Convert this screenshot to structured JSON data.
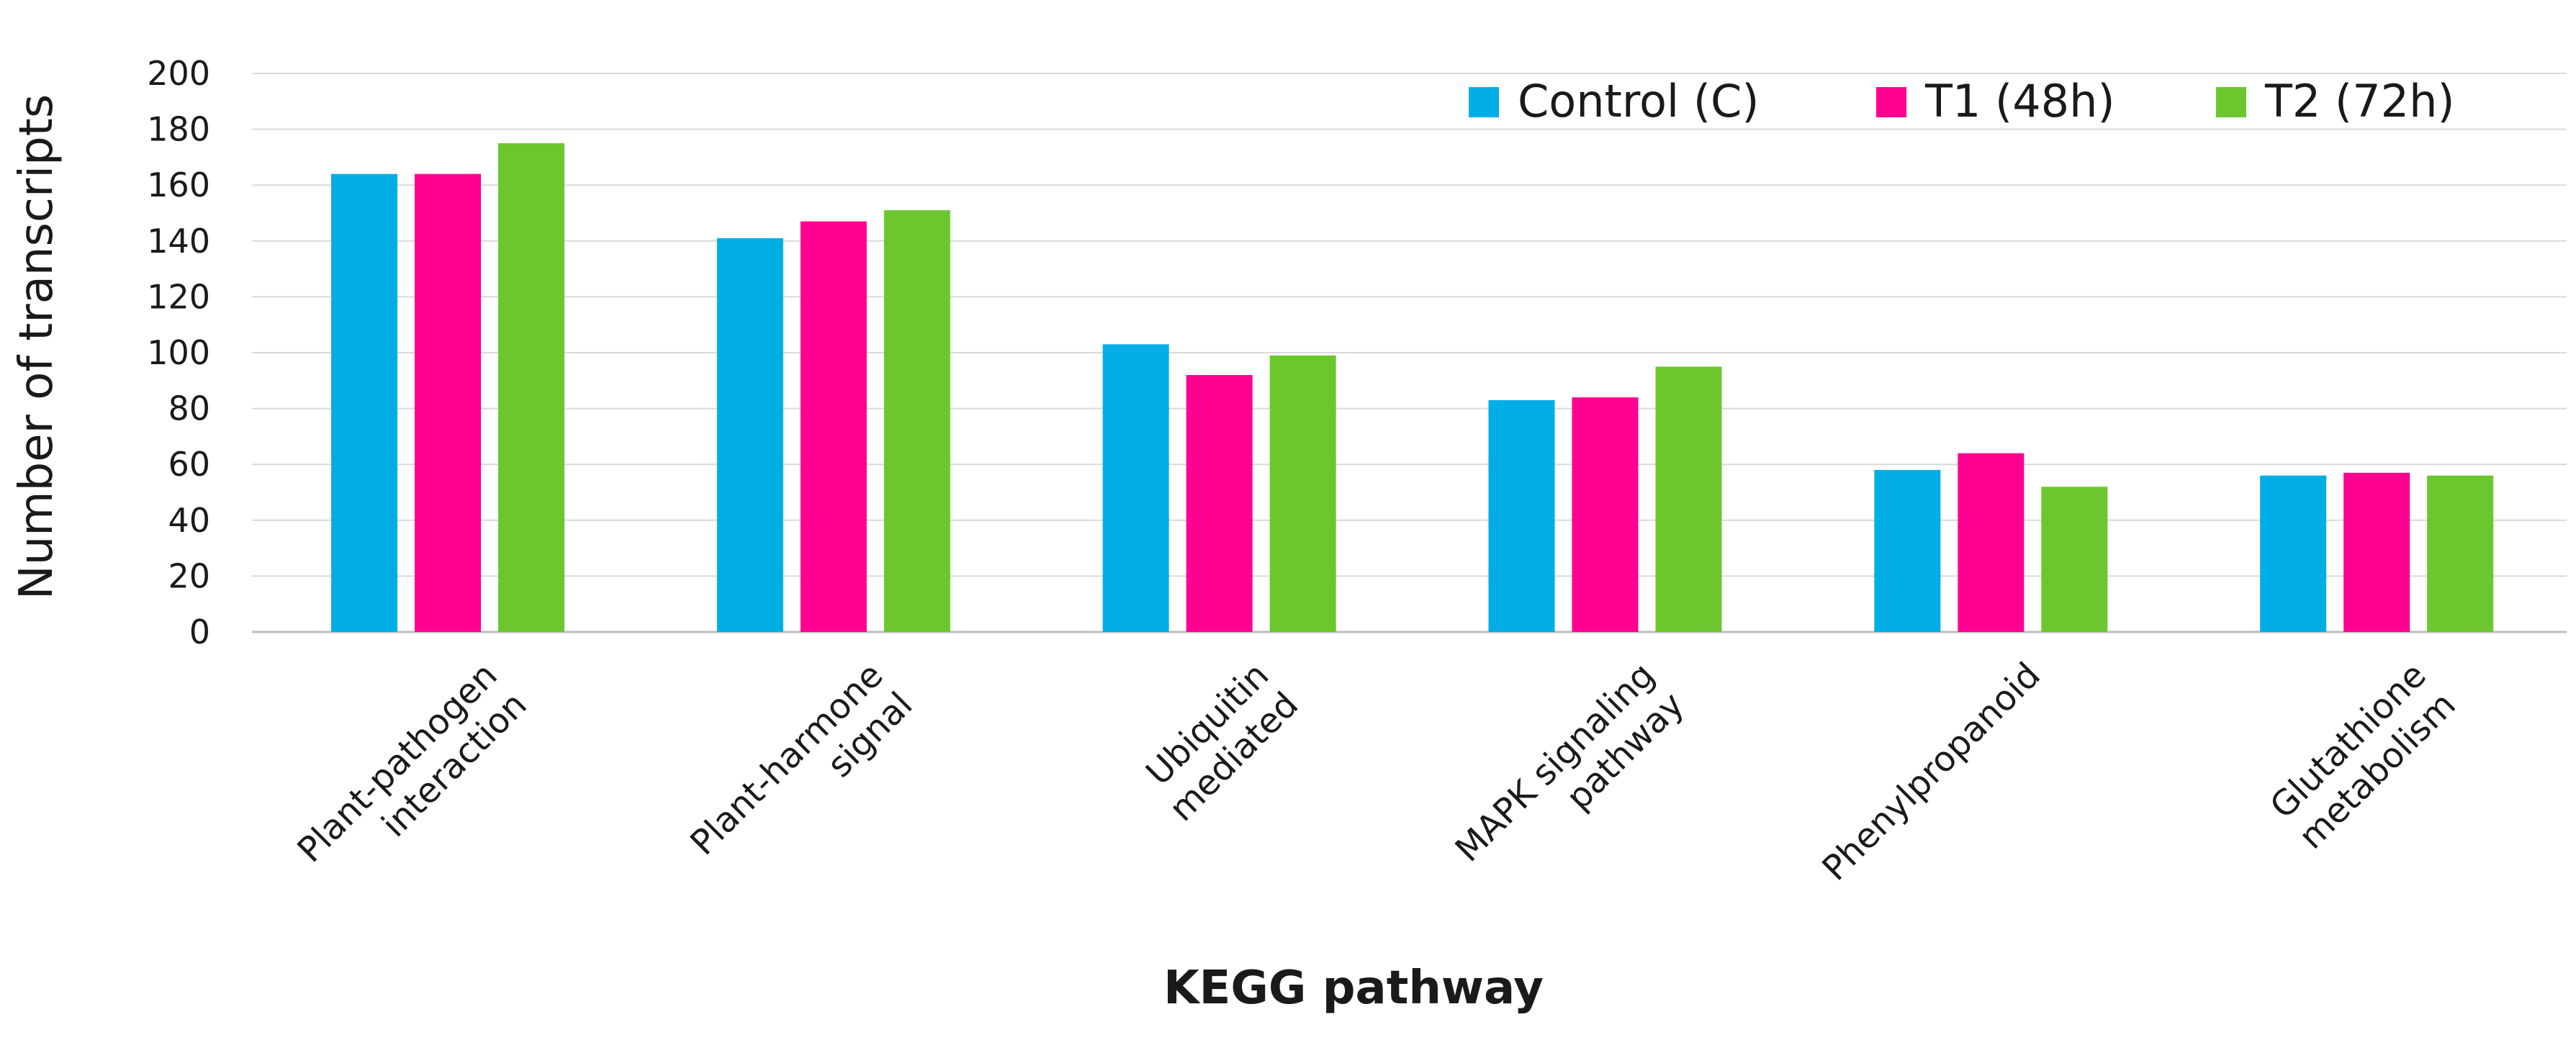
{
  "chart_data": {
    "type": "bar",
    "xlabel": "KEGG pathway",
    "ylabel": "Number of transcripts",
    "ylim": [
      0,
      200
    ],
    "yticks": [
      "0",
      "20",
      "40",
      "60",
      "80",
      "100",
      "120",
      "140",
      "160",
      "180",
      "200"
    ],
    "grid": "horizontal",
    "legend_position": "top-right",
    "categories": [
      [
        "Plant-pathogen",
        "interaction"
      ],
      [
        "Plant-harmone",
        "signal"
      ],
      [
        "Ubiquitin",
        "mediated"
      ],
      [
        "MAPK signaling",
        "pathway"
      ],
      [
        "Phenylpropanoid"
      ],
      [
        "Glutathione",
        "metabolism"
      ]
    ],
    "series": [
      {
        "name": "Control (C)",
        "color": "#00aee5",
        "values": [
          164,
          141,
          103,
          83,
          58,
          56
        ]
      },
      {
        "name": "T1 (48h)",
        "color": "#ff0090",
        "values": [
          164,
          147,
          92,
          84,
          64,
          57
        ]
      },
      {
        "name": "T2 (72h)",
        "color": "#6cc72f",
        "values": [
          175,
          151,
          99,
          95,
          52,
          56
        ]
      }
    ]
  }
}
